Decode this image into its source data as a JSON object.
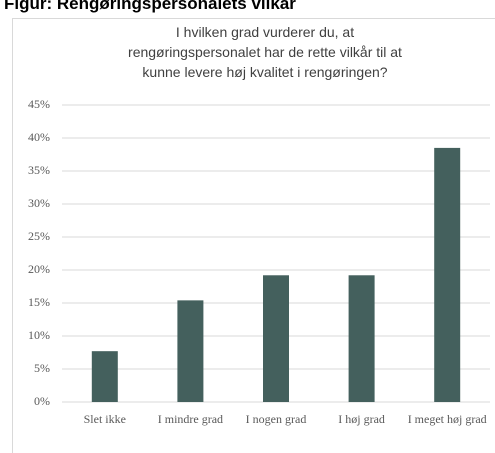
{
  "header": "Figur: Rengøringspersonalets vilkår",
  "chart_data": {
    "type": "bar",
    "title": "I hvilken grad vurderer du, at rengøringspersonalet har de rette vilkår til at kunne levere høj kvalitet i rengøringen?",
    "categories": [
      "Slet ikke",
      "I mindre grad",
      "I nogen grad",
      "I høj grad",
      "I meget høj grad"
    ],
    "values": [
      7.7,
      15.4,
      19.2,
      19.2,
      38.5
    ],
    "color": "#44605d",
    "ylim": [
      0,
      45
    ],
    "yticks": [
      {
        "value": 0,
        "label": "0%"
      },
      {
        "value": 5,
        "label": "5%"
      },
      {
        "value": 10,
        "label": "10%"
      },
      {
        "value": 15,
        "label": "15%"
      },
      {
        "value": 20,
        "label": "20%"
      },
      {
        "value": 25,
        "label": "25%"
      },
      {
        "value": 30,
        "label": "30%"
      },
      {
        "value": 35,
        "label": "35%"
      },
      {
        "value": 40,
        "label": "40%"
      },
      {
        "value": 45,
        "label": "45%"
      }
    ],
    "grid": true
  }
}
